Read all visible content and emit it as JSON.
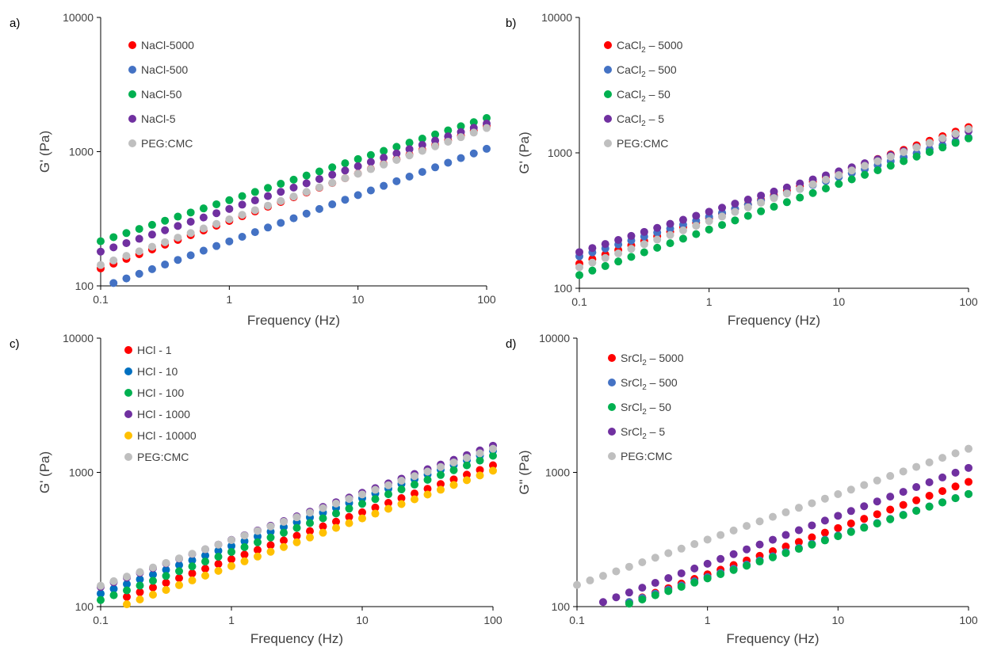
{
  "chart_data": [
    {
      "type": "scatter",
      "panel_label": "a)",
      "xlabel": "Frequency (Hz)",
      "ylabel": "G' (Pa)",
      "x_scale": "log",
      "y_scale": "log",
      "xlim": [
        0.1,
        100
      ],
      "ylim": [
        100,
        10000
      ],
      "x_ticks": [
        "0.1",
        "1",
        "10",
        "100"
      ],
      "y_ticks": [
        "100",
        "1000",
        "10000"
      ],
      "grid": false,
      "legend_position": "top-left",
      "series": [
        {
          "name": "NaCl-5000",
          "color": "#ff0000",
          "x0": 0.1,
          "x1": 100,
          "y0": 135,
          "y1": 1550
        },
        {
          "name": "NaCl-500",
          "color": "#4472c4",
          "x0": 0.126,
          "x1": 100,
          "y0": 105,
          "y1": 1050
        },
        {
          "name": "NaCl-50",
          "color": "#00b050",
          "x0": 0.1,
          "x1": 100,
          "y0": 215,
          "y1": 1780
        },
        {
          "name": "NaCl-5",
          "color": "#7030a0",
          "x0": 0.1,
          "x1": 100,
          "y0": 180,
          "y1": 1620
        },
        {
          "name": "PEG:CMC",
          "color": "#bfbfbf",
          "x0": 0.1,
          "x1": 100,
          "y0": 143,
          "y1": 1500
        }
      ]
    },
    {
      "type": "scatter",
      "panel_label": "b)",
      "xlabel": "Frequency (Hz)",
      "ylabel": "G' (Pa)",
      "x_scale": "log",
      "y_scale": "log",
      "xlim": [
        0.1,
        100
      ],
      "ylim": [
        100,
        10000
      ],
      "x_ticks": [
        "0.1",
        "1",
        "10",
        "100"
      ],
      "y_ticks": [
        "100",
        "1000",
        "10000"
      ],
      "grid": false,
      "legend_position": "top-left",
      "series": [
        {
          "name": "CaCl",
          "sub": "2",
          "tail": " – 5000",
          "color": "#ff0000",
          "x0": 0.1,
          "x1": 100,
          "y0": 152,
          "y1": 1550
        },
        {
          "name": "CaCl",
          "sub": "2",
          "tail": " – 500",
          "color": "#4472c4",
          "x0": 0.1,
          "x1": 100,
          "y0": 172,
          "y1": 1300
        },
        {
          "name": "CaCl",
          "sub": "2",
          "tail": " – 50",
          "color": "#00b050",
          "x0": 0.1,
          "x1": 100,
          "y0": 125,
          "y1": 1280
        },
        {
          "name": "CaCl",
          "sub": "2",
          "tail": " – 5",
          "color": "#7030a0",
          "x0": 0.1,
          "x1": 100,
          "y0": 185,
          "y1": 1450
        },
        {
          "name": "PEG:CMC",
          "color": "#bfbfbf",
          "x0": 0.1,
          "x1": 100,
          "y0": 143,
          "y1": 1500
        }
      ]
    },
    {
      "type": "scatter",
      "panel_label": "c)",
      "xlabel": "Frequency (Hz)",
      "ylabel": "G' (Pa)",
      "x_scale": "log",
      "y_scale": "log",
      "xlim": [
        0.1,
        100
      ],
      "ylim": [
        100,
        10000
      ],
      "x_ticks": [
        "0.1",
        "1",
        "10",
        "100"
      ],
      "y_ticks": [
        "100",
        "1000",
        "10000"
      ],
      "grid": false,
      "legend_position": "top-left",
      "series": [
        {
          "name": "HCl - 1",
          "color": "#ff0000",
          "x0": 0.158,
          "x1": 100,
          "y0": 118,
          "y1": 1130
        },
        {
          "name": "HCl - 10",
          "color": "#0070c0",
          "x0": 0.1,
          "x1": 100,
          "y0": 125,
          "y1": 1450
        },
        {
          "name": "HCl - 100",
          "color": "#00b050",
          "x0": 0.1,
          "x1": 100,
          "y0": 112,
          "y1": 1330
        },
        {
          "name": "HCl - 1000",
          "color": "#7030a0",
          "x0": 0.1,
          "x1": 100,
          "y0": 140,
          "y1": 1580
        },
        {
          "name": "HCl - 10000",
          "color": "#ffc000",
          "x0": 0.158,
          "x1": 100,
          "y0": 104,
          "y1": 1030
        },
        {
          "name": "PEG:CMC",
          "color": "#bfbfbf",
          "x0": 0.1,
          "x1": 100,
          "y0": 143,
          "y1": 1500
        }
      ]
    },
    {
      "type": "scatter",
      "panel_label": "d)",
      "xlabel": "Frequency (Hz)",
      "ylabel": "G\" (Pa)",
      "x_scale": "log",
      "y_scale": "log",
      "xlim": [
        0.1,
        100
      ],
      "ylim": [
        100,
        10000
      ],
      "x_ticks": [
        "0.1",
        "1",
        "10",
        "100"
      ],
      "y_ticks": [
        "100",
        "1000",
        "10000"
      ],
      "grid": false,
      "legend_position": "top-left",
      "series": [
        {
          "name": "SrCl",
          "sub": "2",
          "tail": " – 5000",
          "color": "#ff0000",
          "x0": 0.2,
          "x1": 100,
          "y0": 100,
          "y1": 850
        },
        {
          "name": "SrCl",
          "sub": "2",
          "tail": " – 500",
          "color": "#4472c4",
          "x0": 0.25,
          "x1": 100,
          "y0": 108,
          "y1": 690
        },
        {
          "name": "SrCl",
          "sub": "2",
          "tail": " – 50",
          "color": "#00b050",
          "x0": 0.25,
          "x1": 100,
          "y0": 105,
          "y1": 690
        },
        {
          "name": "SrCl",
          "sub": "2",
          "tail": " – 5",
          "color": "#7030a0",
          "x0": 0.158,
          "x1": 100,
          "y0": 108,
          "y1": 1080
        },
        {
          "name": "PEG:CMC",
          "color": "#bfbfbf",
          "x0": 0.1,
          "x1": 100,
          "y0": 145,
          "y1": 1500
        }
      ]
    }
  ]
}
